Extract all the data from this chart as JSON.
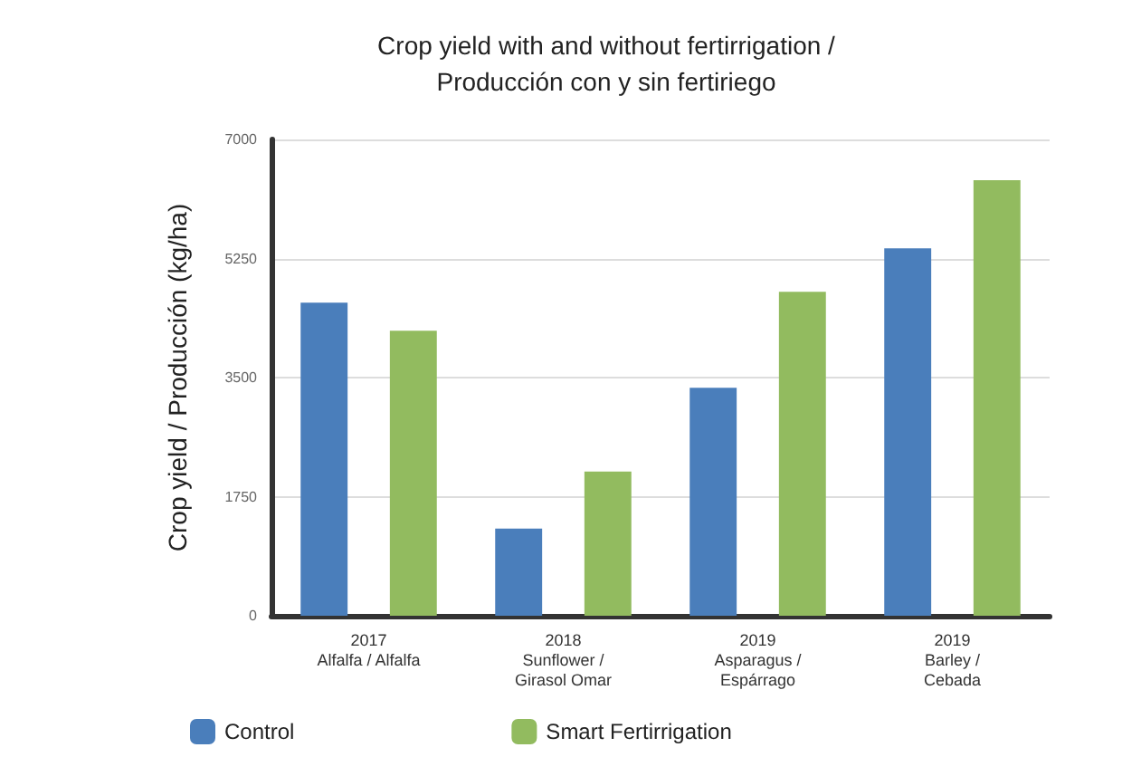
{
  "chart_data": {
    "type": "bar",
    "title": "Crop yield with and without fertirrigation /\nProducción con y sin fertiriego",
    "ylabel": "Crop yield / Producción (kg/ha)",
    "categories": [
      "2017\nAlfalfa / Alfalfa",
      "2018\nSunflower /\nGirasol Omar",
      "2019\nAsparagus /\nEspárrago",
      "2019\nBarley /\nCebada"
    ],
    "series": [
      {
        "name": "Control",
        "color": "#4a7ebb",
        "values": [
          4600,
          1280,
          3350,
          5400
        ]
      },
      {
        "name": "Smart Fertirrigation",
        "color": "#92bb5f",
        "values": [
          4190,
          2120,
          4760,
          6400
        ]
      }
    ],
    "ylim": [
      0,
      7000
    ],
    "yticks": [
      0,
      1750,
      3500,
      5250,
      7000
    ],
    "grid": "y",
    "legend": "bottom left"
  }
}
